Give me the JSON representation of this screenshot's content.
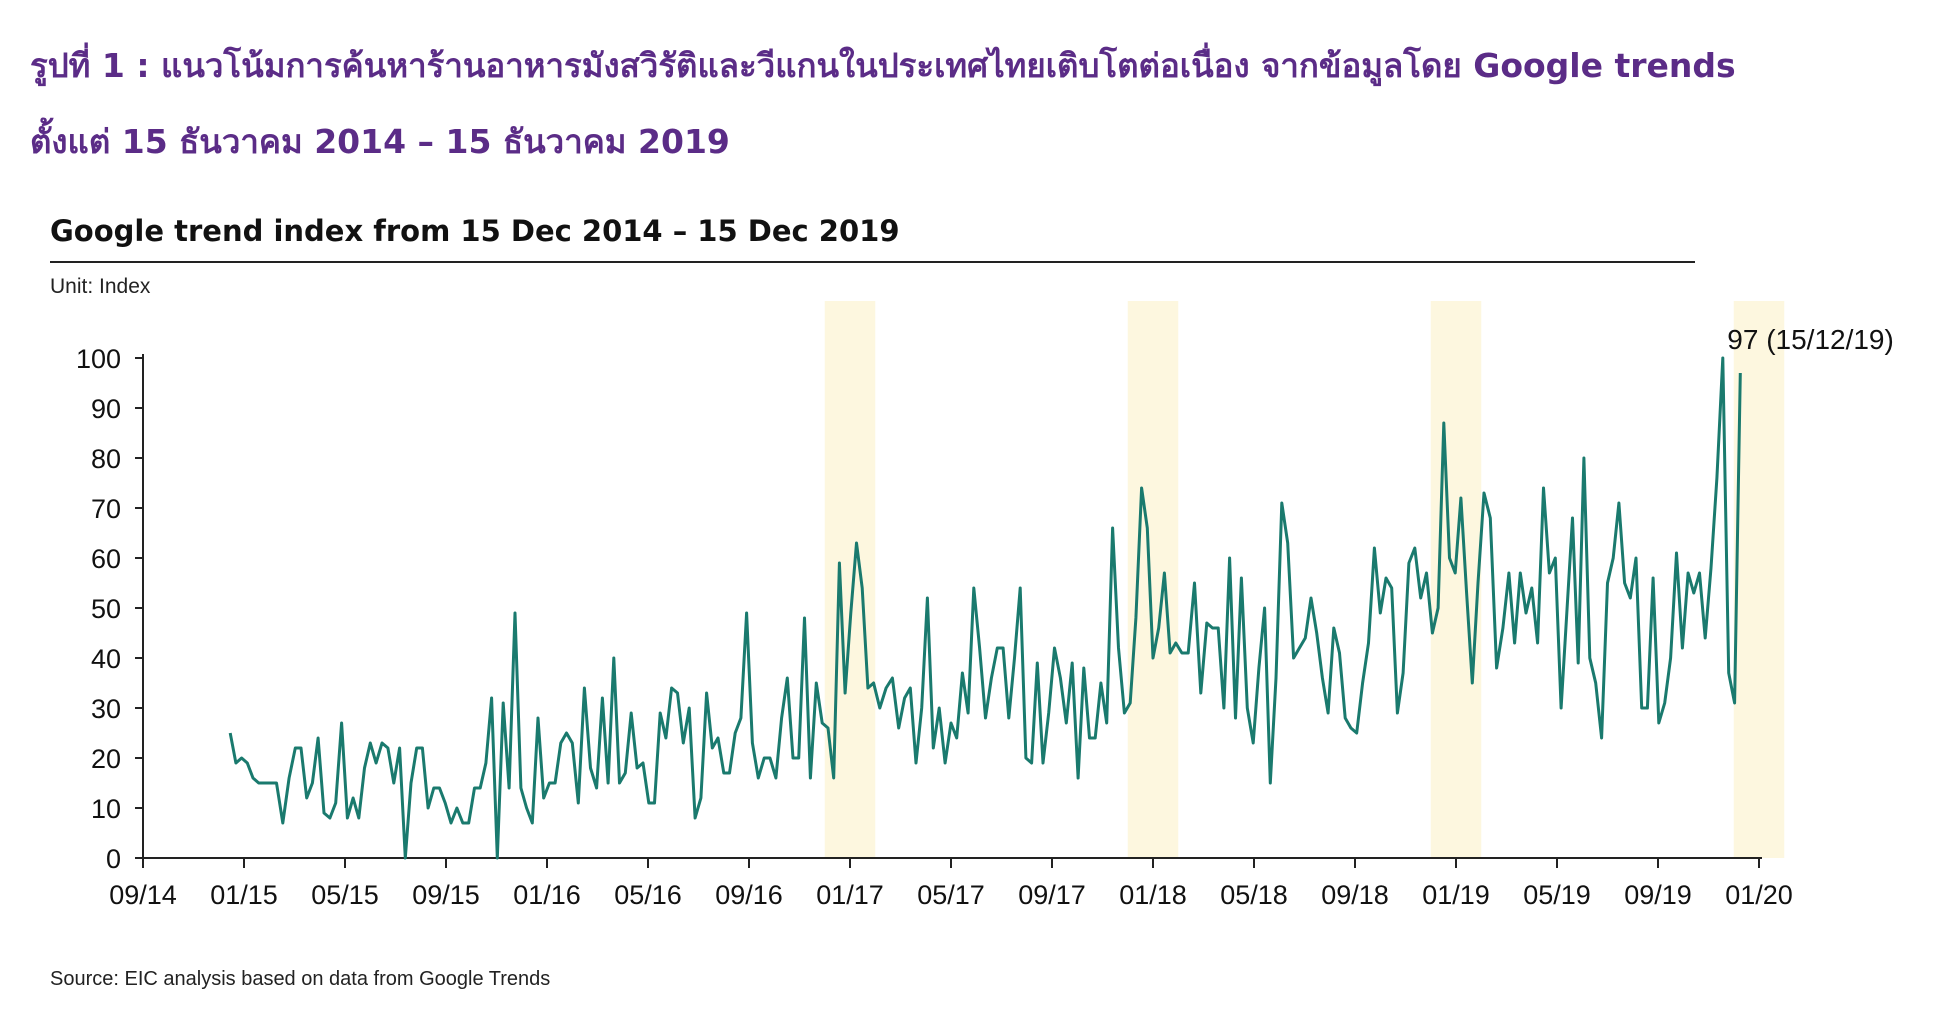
{
  "page": {
    "title_line1": "รูปที่ 1 : แนวโน้มการค้นหาร้านอาหารมังสวิรัติและวีแกนในประเทศไทยเติบโตต่อเนื่อง จากข้อมูลโดย Google trends",
    "title_line2": "ตั้งแต่ 15 ธันวาคม 2014 – 15 ธันวาคม 2019",
    "source": "Source: EIC  analysis based on data from Google Trends"
  },
  "colors": {
    "line": "#1a7a6e",
    "highlight": "#fdf7df",
    "title": "#5b2c87",
    "axis": "#222222"
  },
  "chart_data": {
    "type": "line",
    "title": "Google trend index from 15 Dec 2014 – 15 Dec 2019",
    "unit": "Unit: Index",
    "ylim": [
      0,
      100
    ],
    "yticks": [
      0,
      10,
      20,
      30,
      40,
      50,
      60,
      70,
      80,
      90,
      100
    ],
    "xtick_labels": [
      "09/14",
      "01/15",
      "05/15",
      "09/15",
      "01/16",
      "05/16",
      "09/16",
      "01/17",
      "05/17",
      "09/17",
      "01/18",
      "05/18",
      "09/18",
      "01/19",
      "05/19",
      "09/19",
      "01/20"
    ],
    "x_start": "2014-09",
    "grid": false,
    "highlight_periods": [
      [
        "2016-12",
        "2017-01"
      ],
      [
        "2017-12",
        "2018-01"
      ],
      [
        "2018-12",
        "2019-01"
      ],
      [
        "2019-12",
        "2020-01"
      ]
    ],
    "start_date": "2014-12-15",
    "frequency": "weekly",
    "annotation": "97 (15/12/19)",
    "values": [
      25,
      19,
      20,
      19,
      16,
      15,
      15,
      15,
      15,
      7,
      16,
      22,
      22,
      12,
      15,
      24,
      9,
      8,
      11,
      27,
      8,
      12,
      8,
      18,
      23,
      19,
      23,
      22,
      15,
      22,
      0,
      15,
      22,
      22,
      10,
      14,
      14,
      11,
      7,
      10,
      7,
      7,
      14,
      14,
      19,
      32,
      0,
      31,
      14,
      49,
      14,
      10,
      7,
      28,
      12,
      15,
      15,
      23,
      25,
      23,
      11,
      34,
      18,
      14,
      32,
      15,
      40,
      15,
      17,
      29,
      18,
      19,
      11,
      11,
      29,
      24,
      34,
      33,
      23,
      30,
      8,
      12,
      33,
      22,
      24,
      17,
      17,
      25,
      28,
      49,
      23,
      16,
      20,
      20,
      16,
      28,
      36,
      20,
      20,
      48,
      16,
      35,
      27,
      26,
      16,
      59,
      33,
      49,
      63,
      54,
      34,
      35,
      30,
      34,
      36,
      26,
      32,
      34,
      19,
      30,
      52,
      22,
      30,
      19,
      27,
      24,
      37,
      29,
      54,
      42,
      28,
      36,
      42,
      42,
      28,
      40,
      54,
      20,
      19,
      39,
      19,
      29,
      42,
      36,
      27,
      39,
      16,
      38,
      24,
      24,
      35,
      27,
      66,
      42,
      29,
      31,
      48,
      74,
      66,
      40,
      46,
      57,
      41,
      43,
      41,
      41,
      55,
      33,
      47,
      46,
      46,
      30,
      60,
      28,
      56,
      30,
      23,
      38,
      50,
      15,
      36,
      71,
      63,
      40,
      42,
      44,
      52,
      45,
      36,
      29,
      46,
      41,
      28,
      26,
      25,
      35,
      43,
      62,
      49,
      56,
      54,
      29,
      37,
      59,
      62,
      52,
      57,
      45,
      50,
      87,
      60,
      57,
      72,
      53,
      35,
      55,
      73,
      68,
      38,
      46,
      57,
      43,
      57,
      49,
      54,
      43,
      74,
      57,
      60,
      30,
      49,
      68,
      39,
      80,
      40,
      35,
      24,
      55,
      60,
      71,
      55,
      52,
      60,
      30,
      30,
      56,
      27,
      31,
      40,
      61,
      42,
      57,
      53,
      57,
      44,
      58,
      76,
      100,
      37,
      31,
      97
    ]
  }
}
